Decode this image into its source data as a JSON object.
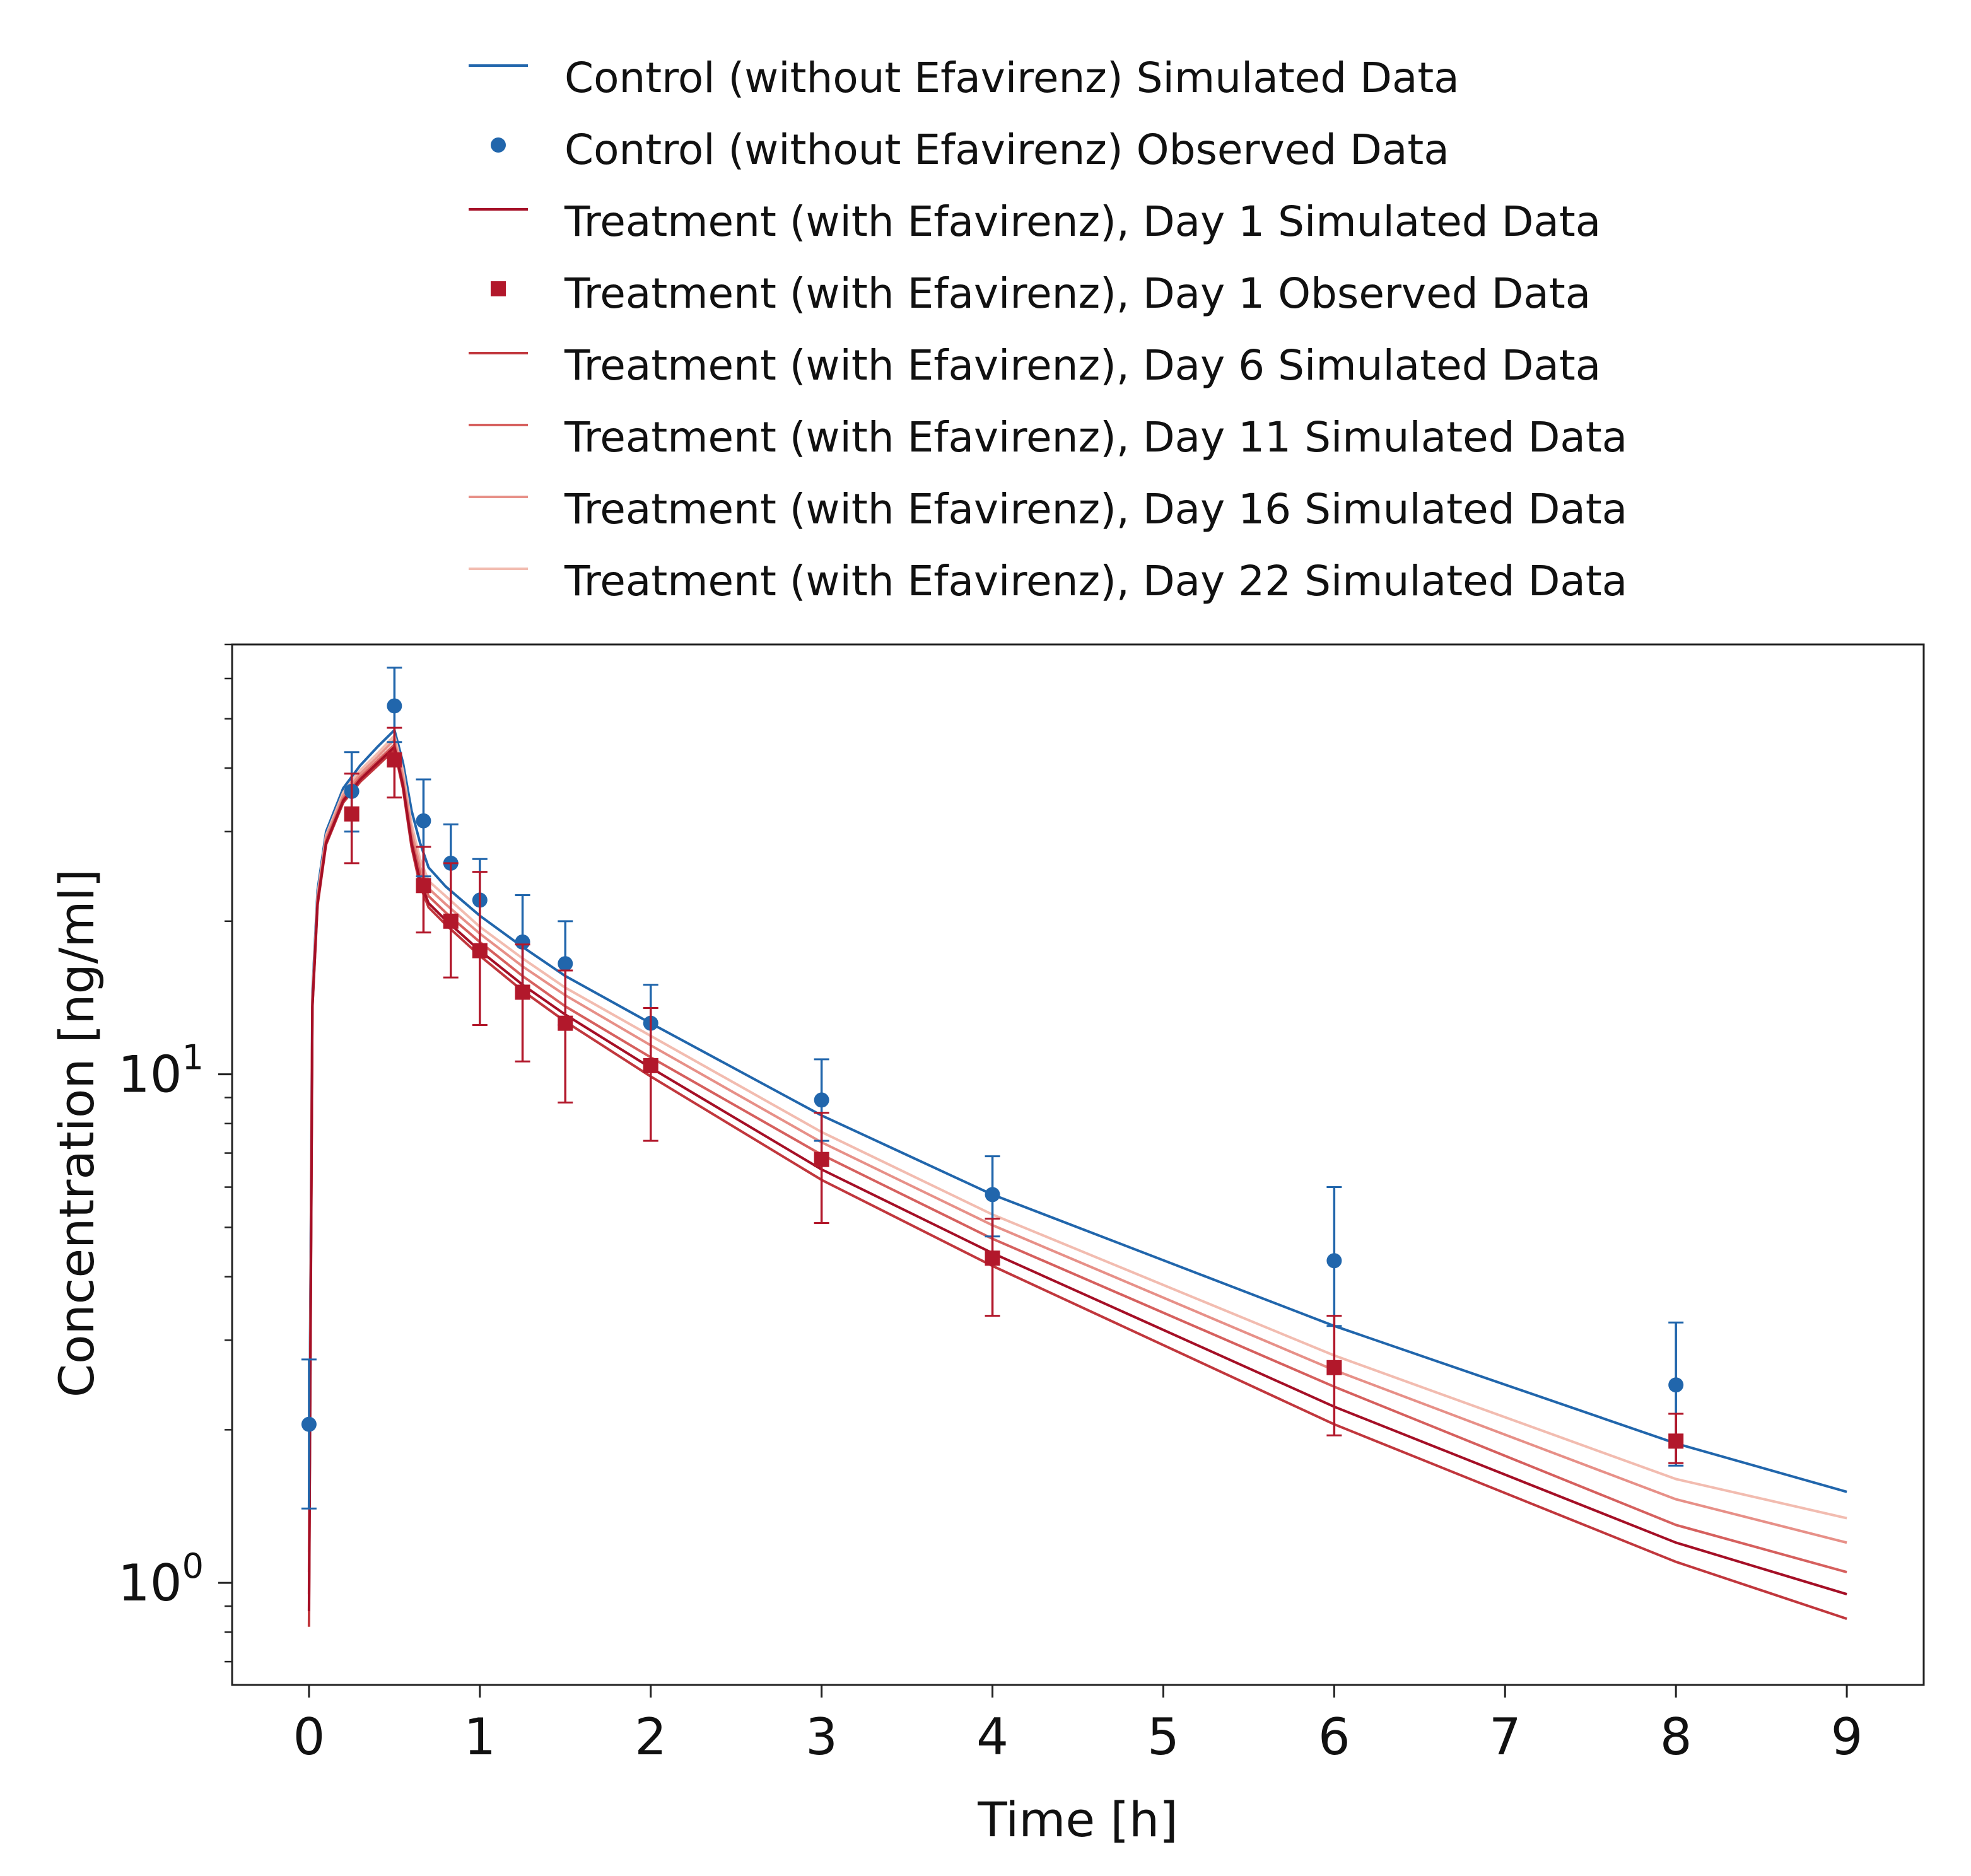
{
  "legend": {
    "items": [
      {
        "label": "Control (without Efavirenz) Simulated Data",
        "kind": "line",
        "color": "#2166ac"
      },
      {
        "label": "Control (without Efavirenz) Observed Data",
        "kind": "circle",
        "color": "#2166ac"
      },
      {
        "label": "Treatment (with Efavirenz), Day 1 Simulated Data",
        "kind": "line",
        "color": "#a50f26"
      },
      {
        "label": "Treatment (with Efavirenz), Day 1 Observed Data",
        "kind": "square",
        "color": "#b2182b"
      },
      {
        "label": "Treatment (with Efavirenz), Day 6 Simulated Data",
        "kind": "line",
        "color": "#c1373d"
      },
      {
        "label": "Treatment (with Efavirenz), Day 11 Simulated Data",
        "kind": "line",
        "color": "#d6605e"
      },
      {
        "label": "Treatment (with Efavirenz), Day 16 Simulated Data",
        "kind": "line",
        "color": "#e79088"
      },
      {
        "label": "Treatment (with Efavirenz), Day 22 Simulated Data",
        "kind": "line",
        "color": "#f2bcb0"
      }
    ]
  },
  "chart_data": {
    "type": "line",
    "xlabel": "Time [h]",
    "ylabel": "Concentration [ng/ml]",
    "xlim": [
      -0.45,
      9.45
    ],
    "ylim": [
      0.63,
      70
    ],
    "y_scale": "log",
    "x_ticks": [
      "0",
      "1",
      "2",
      "3",
      "4",
      "5",
      "6",
      "7",
      "8",
      "9"
    ],
    "y_ticks": [
      {
        "value": 1,
        "base": "10",
        "exp": "0"
      },
      {
        "value": 10,
        "base": "10",
        "exp": "1"
      }
    ],
    "grid": false,
    "legend_position": "top",
    "series": [
      {
        "name": "Control (without Efavirenz) Simulated Data",
        "kind": "line",
        "color": "#2166ac",
        "x": [
          0,
          0.02,
          0.05,
          0.1,
          0.2,
          0.3,
          0.4,
          0.5,
          0.55,
          0.6,
          0.65,
          0.7,
          0.8,
          1.0,
          1.25,
          1.5,
          2,
          3,
          4,
          6,
          8,
          9
        ],
        "y": [
          1.4,
          14.5,
          23,
          30,
          36.5,
          40.5,
          44,
          47.5,
          41,
          33,
          28.5,
          25.5,
          23.4,
          20.5,
          17.8,
          15.6,
          12.6,
          8.3,
          5.8,
          3.2,
          1.88,
          1.51
        ]
      },
      {
        "name": "Treatment (with Efavirenz), Day 22 Simulated Data",
        "kind": "line",
        "color": "#f2bcb0",
        "x": [
          0,
          0.02,
          0.05,
          0.1,
          0.2,
          0.3,
          0.4,
          0.5,
          0.55,
          0.6,
          0.65,
          0.7,
          0.8,
          1.0,
          1.25,
          1.5,
          2,
          3,
          4,
          6,
          8,
          9
        ],
        "y": [
          1.15,
          14.2,
          22.5,
          29.5,
          35.8,
          39.6,
          42.7,
          46.3,
          39.5,
          31,
          26.5,
          24,
          22.4,
          19.5,
          16.9,
          14.8,
          11.9,
          7.7,
          5.3,
          2.8,
          1.6,
          1.34
        ]
      },
      {
        "name": "Treatment (with Efavirenz), Day 16 Simulated Data",
        "kind": "line",
        "color": "#e79088",
        "x": [
          0,
          0.02,
          0.05,
          0.1,
          0.2,
          0.3,
          0.4,
          0.5,
          0.55,
          0.6,
          0.65,
          0.7,
          0.8,
          1.0,
          1.25,
          1.5,
          2,
          3,
          4,
          6,
          8,
          9
        ],
        "y": [
          1.05,
          14,
          22.2,
          29.2,
          35.3,
          39,
          42,
          45.5,
          38.5,
          30,
          25.6,
          23.2,
          21.6,
          18.9,
          16.3,
          14.3,
          11.4,
          7.35,
          5.05,
          2.62,
          1.46,
          1.2
        ]
      },
      {
        "name": "Treatment (with Efavirenz), Day 11 Simulated Data",
        "kind": "line",
        "color": "#d6605e",
        "x": [
          0,
          0.02,
          0.05,
          0.1,
          0.2,
          0.3,
          0.4,
          0.5,
          0.55,
          0.6,
          0.65,
          0.7,
          0.8,
          1.0,
          1.25,
          1.5,
          2,
          3,
          4,
          6,
          8,
          9
        ],
        "y": [
          0.95,
          13.8,
          21.9,
          28.8,
          34.8,
          38.4,
          41.3,
          44.5,
          37.5,
          29,
          24.8,
          22.4,
          20.8,
          18.2,
          15.6,
          13.6,
          10.8,
          6.95,
          4.75,
          2.43,
          1.3,
          1.05
        ]
      },
      {
        "name": "Treatment (with Efavirenz), Day 6 Simulated Data",
        "kind": "line",
        "color": "#c1373d",
        "x": [
          0,
          0.02,
          0.05,
          0.1,
          0.2,
          0.3,
          0.4,
          0.5,
          0.55,
          0.6,
          0.65,
          0.7,
          0.8,
          1.0,
          1.25,
          1.5,
          2,
          3,
          4,
          6,
          8,
          9
        ],
        "y": [
          0.82,
          13.5,
          21.5,
          28.3,
          34.2,
          37.6,
          40.4,
          43.5,
          36.5,
          28,
          23.5,
          21.3,
          19.7,
          17.1,
          14.6,
          12.7,
          9.9,
          6.2,
          4.2,
          2.05,
          1.1,
          0.85
        ]
      },
      {
        "name": "Treatment (with Efavirenz), Day 1 Simulated Data",
        "kind": "line",
        "color": "#a50f26",
        "x": [
          0,
          0.02,
          0.05,
          0.1,
          0.2,
          0.3,
          0.4,
          0.5,
          0.55,
          0.6,
          0.65,
          0.7,
          0.8,
          1.0,
          1.25,
          1.5,
          2,
          3,
          4,
          6,
          8,
          9
        ],
        "y": [
          0.88,
          13.6,
          21.7,
          28.5,
          34.5,
          38,
          40.9,
          44,
          37,
          28.5,
          24,
          21.7,
          20.1,
          17.5,
          15,
          13.1,
          10.3,
          6.5,
          4.45,
          2.22,
          1.2,
          0.95
        ]
      },
      {
        "name": "Control (without Efavirenz) Observed Data",
        "kind": "circle",
        "color": "#2166ac",
        "x": [
          0,
          0.25,
          0.5,
          0.67,
          0.83,
          1.0,
          1.25,
          1.5,
          2,
          3,
          4,
          6,
          8
        ],
        "y": [
          2.05,
          36,
          53,
          31.5,
          26,
          22,
          18.2,
          16.5,
          12.6,
          8.9,
          5.8,
          4.3,
          2.45
        ],
        "err_low": [
          1.4,
          30,
          45,
          24.5,
          20.5,
          17.5,
          14.2,
          12.5,
          10.5,
          7.4,
          4.8,
          3.2,
          1.7
        ],
        "err_high": [
          2.75,
          43,
          63,
          38,
          31,
          26.5,
          22.5,
          20,
          15,
          10.7,
          6.9,
          6,
          3.25
        ]
      },
      {
        "name": "Treatment (with Efavirenz), Day 1 Observed Data",
        "kind": "square",
        "color": "#b2182b",
        "x": [
          0.25,
          0.5,
          0.67,
          0.83,
          1.0,
          1.25,
          1.5,
          2,
          3,
          4,
          6,
          8
        ],
        "y": [
          32.5,
          41.5,
          23.5,
          20,
          17.5,
          14.5,
          12.6,
          10.4,
          6.8,
          4.35,
          2.65,
          1.9
        ],
        "err_low": [
          26,
          35,
          19,
          15.5,
          12.5,
          10.6,
          8.8,
          7.4,
          5.1,
          3.35,
          1.95,
          1.72
        ],
        "err_high": [
          39,
          48,
          28,
          26,
          25,
          18,
          16,
          13.5,
          8.4,
          5.2,
          3.35,
          2.15
        ]
      }
    ]
  }
}
